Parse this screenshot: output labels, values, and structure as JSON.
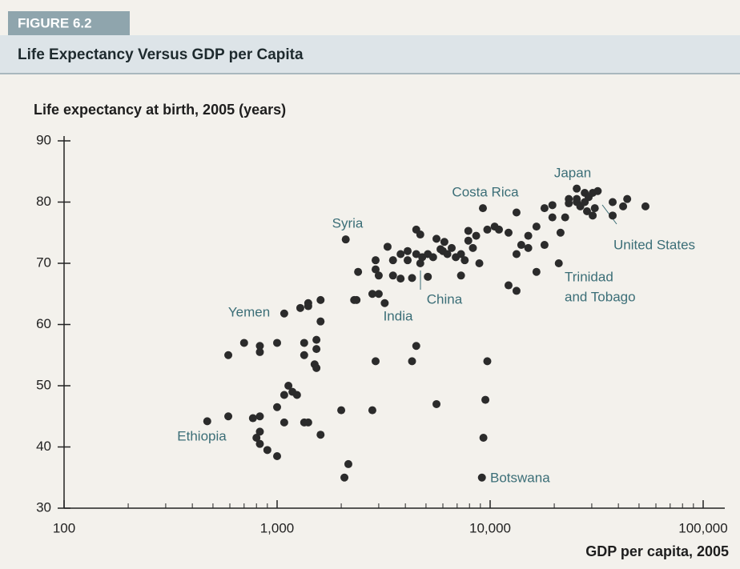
{
  "figure_label": "FIGURE 6.2",
  "chart_data": {
    "type": "scatter",
    "title": "Life Expectancy Versus GDP per Capita",
    "y_label": "Life expectancy at birth, 2005 (years)",
    "x_label": "GDP per capita, 2005",
    "log_x": true,
    "color": "#2b2b2b",
    "xlim": [
      100,
      100000
    ],
    "ylim": [
      30,
      90
    ],
    "xticks": [
      100,
      {
        "value": 1000,
        "label": "1,000"
      },
      {
        "value": 10000,
        "label": "10,000"
      },
      {
        "value": 100000,
        "label": "100,000"
      }
    ],
    "xminorticks": [
      200,
      300,
      400,
      500,
      600,
      700,
      800,
      900,
      2000,
      3000,
      4000,
      5000,
      6000,
      7000,
      8000,
      9000,
      20000,
      30000,
      40000,
      50000,
      60000,
      70000,
      80000,
      90000
    ],
    "yticks": [
      30,
      40,
      50,
      60,
      70,
      80,
      90
    ],
    "annotations": [
      [
        "Syria"
      ],
      [
        "Costa Rica"
      ],
      [
        "Japan"
      ],
      [
        "United States"
      ],
      [
        "Trinidad",
        "and Tobago"
      ],
      [
        "China"
      ],
      [
        "India"
      ],
      [
        "Yemen"
      ],
      [
        "Ethiopia"
      ],
      [
        "Botswana"
      ]
    ],
    "x": [
      470,
      590,
      590,
      700,
      770,
      800,
      830,
      830,
      830,
      830,
      830,
      900,
      1000,
      1000,
      1000,
      1080,
      1080,
      1130,
      1080,
      1180,
      1240,
      1285,
      1340,
      1340,
      1340,
      1400,
      1400,
      1400,
      1500,
      1530,
      1530,
      1530,
      1600,
      1600,
      1600,
      2000,
      2070,
      2160,
      2100,
      2360,
      2400,
      2300,
      2800,
      2800,
      2900,
      2900,
      2900,
      3000,
      3000,
      3200,
      3300,
      3500,
      3500,
      3800,
      3800,
      4100,
      4100,
      4300,
      4300,
      4500,
      4500,
      4500,
      4700,
      4700,
      4800,
      5100,
      5100,
      5400,
      5600,
      5600,
      5850,
      6000,
      6100,
      6300,
      6600,
      6900,
      7300,
      7300,
      7600,
      7900,
      7900,
      8300,
      8600,
      8900,
      9150,
      9250,
      9300,
      9500,
      9700,
      9700,
      10500,
      11000,
      12200,
      12200,
      13300,
      13300,
      13300,
      14000,
      15100,
      15100,
      16500,
      16500,
      18000,
      18000,
      19600,
      19600,
      21000,
      21400,
      22500,
      23400,
      23400,
      25500,
      25500,
      25500,
      26500,
      27800,
      27800,
      28500,
      29000,
      30300,
      30300,
      31000,
      32000,
      37600,
      37600,
      42100,
      44000,
      53600
    ],
    "values": [
      44.2,
      45,
      55,
      57,
      44.7,
      41.5,
      45,
      42.5,
      40.5,
      55.5,
      56.5,
      39.5,
      38.5,
      57,
      46.5,
      44,
      48.5,
      50,
      61.8,
      49,
      48.5,
      62.7,
      57,
      55,
      44,
      44,
      63.5,
      63,
      53.5,
      52.9,
      56,
      57.5,
      42,
      64,
      60.5,
      46,
      35,
      37.2,
      73.9,
      64,
      68.6,
      64,
      65,
      46,
      54,
      70.5,
      69,
      65,
      68,
      63.5,
      72.7,
      70.5,
      68,
      71.5,
      67.5,
      70.5,
      72,
      67.6,
      54,
      75.5,
      56.5,
      71.5,
      74.7,
      70,
      71,
      71.5,
      67.8,
      71,
      74,
      47,
      72.3,
      72,
      73.5,
      71.5,
      72.5,
      71,
      71.5,
      68,
      70.5,
      75.3,
      73.7,
      72.5,
      74.5,
      70,
      35,
      79,
      41.5,
      47.7,
      54,
      75.5,
      76,
      75.5,
      66.4,
      75,
      65.5,
      78.3,
      71.5,
      73,
      72.5,
      74.5,
      68.6,
      76,
      79,
      73,
      77.5,
      79.5,
      70,
      75,
      77.5,
      80.5,
      79.8,
      80,
      80.5,
      82.2,
      79.3,
      81.5,
      80,
      78.5,
      80.8,
      81.5,
      77.8,
      79,
      81.8,
      80,
      77.8,
      79.3,
      80.5,
      79.3
    ]
  }
}
